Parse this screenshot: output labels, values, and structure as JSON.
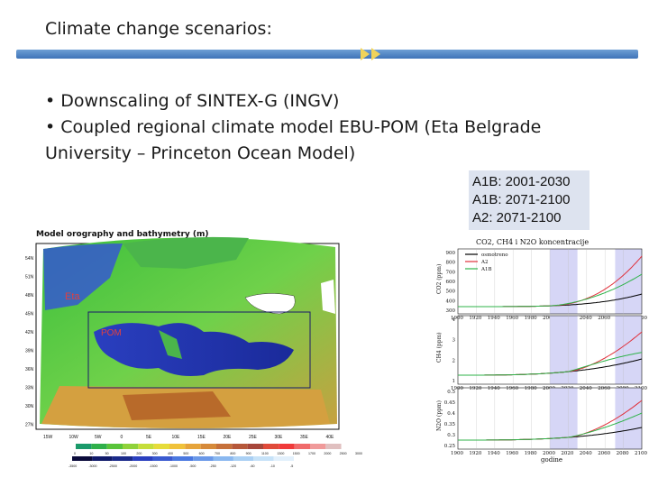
{
  "slide": {
    "title": "Climate change scenarios:",
    "bullets": [
      "• Downscaling of SINTEX-G (INGV)",
      "• Coupled regional climate model EBU-POM (Eta Belgrade",
      "University – Princeton Ocean Model)"
    ],
    "scenarios": [
      "A1B: 2001-2030",
      "A1B: 2071-2100",
      "A2: 2071-2100"
    ]
  },
  "map": {
    "title": "Model orography and bathymetry (m)",
    "labels": {
      "eta": "Eta",
      "pom": "POM"
    },
    "lat_ticks": [
      "54N",
      "51N",
      "48N",
      "45N",
      "42N",
      "39N",
      "36N",
      "33N",
      "30N",
      "27N"
    ],
    "lon_ticks": [
      "15W",
      "10W",
      "5W",
      "0",
      "5E",
      "10E",
      "15E",
      "20E",
      "25E",
      "30E",
      "35E",
      "40E"
    ],
    "colorbar_top": [
      "0",
      "10",
      "50",
      "100",
      "200",
      "300",
      "400",
      "500",
      "600",
      "700",
      "800",
      "900",
      "1100",
      "1300",
      "1500",
      "1700",
      "2000",
      "2500",
      "3000"
    ],
    "colorbar_bottom": [
      "-3500",
      "-3000",
      "-2500",
      "-2000",
      "-1500",
      "-1000",
      "-500",
      "-250",
      "-120",
      "-60",
      "-10",
      "-5"
    ]
  },
  "graph": {
    "title": "CO2, CH4 i N2O koncentracije",
    "legend": [
      "osmotreno",
      "A2",
      "A1B"
    ],
    "xlabel": "godine",
    "x_ticks": [
      "1900",
      "1920",
      "1940",
      "1960",
      "1980",
      "2000",
      "2020",
      "2040",
      "2060",
      "2080",
      "2100"
    ],
    "panels": [
      {
        "ylabel": "CO2 (ppm)",
        "y_ticks": [
          "900",
          "800",
          "700",
          "600",
          "500",
          "400",
          "300"
        ]
      },
      {
        "ylabel": "CH4 (ppm)",
        "y_ticks": [
          "4",
          "3",
          "2",
          "1"
        ]
      },
      {
        "ylabel": "N2O (ppm)",
        "y_ticks": [
          "0.5",
          "0.45",
          "0.4",
          "0.35",
          "0.3",
          "0.25"
        ]
      }
    ],
    "colors": {
      "observed": "#000000",
      "A2": "#e0303a",
      "A1B": "#2fb34a",
      "shade": "#d6d6f6"
    }
  },
  "colors": {
    "accent_bar": "#4a7fc0",
    "arrow": "#f0d35a",
    "scenario_bg": "#dde3ef"
  }
}
